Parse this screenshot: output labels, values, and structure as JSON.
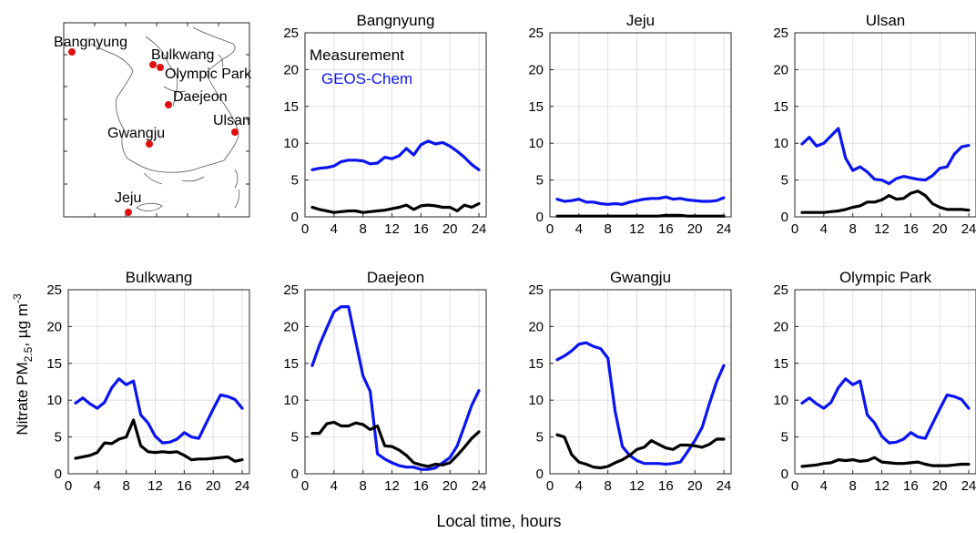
{
  "figure": {
    "ylabel_main": "Nitrate PM",
    "ylabel_sub": "2.5",
    "ylabel_unit": ", µg m",
    "ylabel_sup": "-3",
    "xlabel": "Local time, hours",
    "legend": {
      "measurement": "Measurement",
      "model": "GEOS-Chem"
    },
    "colors": {
      "measurement": "#000000",
      "model": "#0a14f0",
      "grid": "#e0e0e0",
      "axis": "#262626",
      "site": "#e01010"
    }
  },
  "map": {
    "sites": [
      {
        "name": "Bangnyung"
      },
      {
        "name": "Bulkwang"
      },
      {
        "name": "Olympic Park"
      },
      {
        "name": "Daejeon"
      },
      {
        "name": "Ulsan"
      },
      {
        "name": "Gwangju"
      },
      {
        "name": "Jeju"
      }
    ]
  },
  "chart_data": [
    {
      "type": "line",
      "title": "Bangnyung",
      "x": [
        1,
        2,
        3,
        4,
        5,
        6,
        7,
        8,
        9,
        10,
        11,
        12,
        13,
        14,
        15,
        16,
        17,
        18,
        19,
        20,
        21,
        22,
        23,
        24
      ],
      "xlim": [
        0,
        25
      ],
      "ylim": [
        0,
        25
      ],
      "xticks": [
        0,
        4,
        8,
        12,
        16,
        20,
        24
      ],
      "yticks": [
        0,
        5,
        10,
        15,
        20,
        25
      ],
      "series": [
        {
          "name": "GEOS-Chem",
          "values": [
            6.4,
            6.6,
            6.7,
            6.9,
            7.5,
            7.7,
            7.7,
            7.6,
            7.2,
            7.3,
            8.1,
            7.9,
            8.3,
            9.3,
            8.4,
            9.8,
            10.3,
            9.9,
            10.1,
            9.6,
            8.9,
            8.1,
            7.1,
            6.4
          ]
        },
        {
          "name": "Measurement",
          "values": [
            1.3,
            1.0,
            0.8,
            0.6,
            0.7,
            0.8,
            0.8,
            0.6,
            0.7,
            0.8,
            0.9,
            1.1,
            1.3,
            1.6,
            1.0,
            1.5,
            1.6,
            1.5,
            1.3,
            1.3,
            0.8,
            1.6,
            1.3,
            1.8
          ]
        }
      ]
    },
    {
      "type": "line",
      "title": "Jeju",
      "x": [
        1,
        2,
        3,
        4,
        5,
        6,
        7,
        8,
        9,
        10,
        11,
        12,
        13,
        14,
        15,
        16,
        17,
        18,
        19,
        20,
        21,
        22,
        23,
        24
      ],
      "xlim": [
        0,
        25
      ],
      "ylim": [
        0,
        25
      ],
      "xticks": [
        0,
        4,
        8,
        12,
        16,
        20,
        24
      ],
      "yticks": [
        0,
        5,
        10,
        15,
        20,
        25
      ],
      "series": [
        {
          "name": "GEOS-Chem",
          "values": [
            2.4,
            2.1,
            2.2,
            2.4,
            2.0,
            2.0,
            1.8,
            1.7,
            1.8,
            1.7,
            2.0,
            2.2,
            2.4,
            2.5,
            2.5,
            2.7,
            2.4,
            2.5,
            2.3,
            2.2,
            2.1,
            2.1,
            2.2,
            2.6
          ]
        },
        {
          "name": "Measurement",
          "values": [
            0.1,
            0.1,
            0.1,
            0.1,
            0.1,
            0.1,
            0.1,
            0.1,
            0.1,
            0.1,
            0.1,
            0.1,
            0.1,
            0.1,
            0.1,
            0.2,
            0.2,
            0.2,
            0.1,
            0.1,
            0.1,
            0.1,
            0.1,
            0.1
          ]
        }
      ]
    },
    {
      "type": "line",
      "title": "Ulsan",
      "x": [
        1,
        2,
        3,
        4,
        5,
        6,
        7,
        8,
        9,
        10,
        11,
        12,
        13,
        14,
        15,
        16,
        17,
        18,
        19,
        20,
        21,
        22,
        23,
        24
      ],
      "xlim": [
        0,
        25
      ],
      "ylim": [
        0,
        25
      ],
      "xticks": [
        0,
        4,
        8,
        12,
        16,
        20,
        24
      ],
      "yticks": [
        0,
        5,
        10,
        15,
        20,
        25
      ],
      "series": [
        {
          "name": "GEOS-Chem",
          "values": [
            9.9,
            10.8,
            9.6,
            10.0,
            11.0,
            12.0,
            8.0,
            6.3,
            6.8,
            6.1,
            5.1,
            5.0,
            4.5,
            5.2,
            5.5,
            5.3,
            5.1,
            5.0,
            5.6,
            6.6,
            6.8,
            8.5,
            9.5,
            9.7
          ]
        },
        {
          "name": "Measurement",
          "values": [
            0.6,
            0.6,
            0.6,
            0.6,
            0.7,
            0.8,
            1.0,
            1.3,
            1.5,
            2.0,
            2.0,
            2.3,
            2.9,
            2.4,
            2.5,
            3.2,
            3.5,
            2.9,
            1.8,
            1.3,
            1.0,
            1.0,
            1.0,
            0.9
          ]
        }
      ]
    },
    {
      "type": "line",
      "title": "Bulkwang",
      "x": [
        1,
        2,
        3,
        4,
        5,
        6,
        7,
        8,
        9,
        10,
        11,
        12,
        13,
        14,
        15,
        16,
        17,
        18,
        19,
        20,
        21,
        22,
        23,
        24
      ],
      "xlim": [
        0,
        25
      ],
      "ylim": [
        0,
        25
      ],
      "xticks": [
        0,
        4,
        8,
        12,
        16,
        20,
        24
      ],
      "yticks": [
        0,
        5,
        10,
        15,
        20,
        25
      ],
      "series": [
        {
          "name": "GEOS-Chem",
          "values": [
            9.6,
            10.3,
            9.5,
            8.9,
            9.7,
            11.7,
            12.9,
            12.1,
            12.6,
            8.0,
            6.9,
            5.1,
            4.2,
            4.3,
            4.7,
            5.6,
            5.0,
            4.8,
            6.8,
            8.8,
            10.7,
            10.5,
            10.1,
            8.9
          ]
        },
        {
          "name": "Measurement",
          "values": [
            2.1,
            2.3,
            2.5,
            2.9,
            4.2,
            4.1,
            4.7,
            5.0,
            7.3,
            3.8,
            3.0,
            2.9,
            3.0,
            2.9,
            3.0,
            2.5,
            1.9,
            2.0,
            2.0,
            2.1,
            2.2,
            2.3,
            1.7,
            1.9
          ]
        }
      ]
    },
    {
      "type": "line",
      "title": "Daejeon",
      "x": [
        1,
        2,
        3,
        4,
        5,
        6,
        7,
        8,
        9,
        10,
        11,
        12,
        13,
        14,
        15,
        16,
        17,
        18,
        19,
        20,
        21,
        22,
        23,
        24
      ],
      "xlim": [
        0,
        25
      ],
      "ylim": [
        0,
        25
      ],
      "xticks": [
        0,
        4,
        8,
        12,
        16,
        20,
        24
      ],
      "yticks": [
        0,
        5,
        10,
        15,
        20,
        25
      ],
      "series": [
        {
          "name": "GEOS-Chem",
          "values": [
            14.7,
            17.5,
            19.8,
            22.0,
            22.7,
            22.7,
            18.0,
            13.3,
            11.2,
            2.7,
            2.0,
            1.5,
            1.1,
            0.9,
            0.9,
            0.6,
            0.6,
            0.8,
            1.5,
            2.2,
            3.8,
            6.5,
            9.3,
            11.3
          ]
        },
        {
          "name": "Measurement",
          "values": [
            5.5,
            5.5,
            6.8,
            7.0,
            6.5,
            6.5,
            6.9,
            6.7,
            6.0,
            6.5,
            3.8,
            3.7,
            3.2,
            2.5,
            1.5,
            1.2,
            1.0,
            1.3,
            1.2,
            1.5,
            2.5,
            3.6,
            4.8,
            5.7
          ]
        }
      ]
    },
    {
      "type": "line",
      "title": "Gwangju",
      "x": [
        1,
        2,
        3,
        4,
        5,
        6,
        7,
        8,
        9,
        10,
        11,
        12,
        13,
        14,
        15,
        16,
        17,
        18,
        19,
        20,
        21,
        22,
        23,
        24
      ],
      "xlim": [
        0,
        25
      ],
      "ylim": [
        0,
        25
      ],
      "xticks": [
        0,
        4,
        8,
        12,
        16,
        20,
        24
      ],
      "yticks": [
        0,
        5,
        10,
        15,
        20,
        25
      ],
      "series": [
        {
          "name": "GEOS-Chem",
          "values": [
            15.5,
            16.0,
            16.7,
            17.6,
            17.8,
            17.3,
            17.0,
            15.7,
            8.5,
            3.7,
            2.5,
            1.8,
            1.4,
            1.4,
            1.4,
            1.3,
            1.4,
            1.6,
            3.0,
            4.5,
            6.3,
            9.5,
            12.5,
            14.7
          ]
        },
        {
          "name": "Measurement",
          "values": [
            5.3,
            5.0,
            2.6,
            1.6,
            1.3,
            0.9,
            0.8,
            1.0,
            1.5,
            1.9,
            2.5,
            3.3,
            3.6,
            4.5,
            4.0,
            3.5,
            3.3,
            3.9,
            3.9,
            3.8,
            3.6,
            4.0,
            4.7,
            4.7
          ]
        }
      ]
    },
    {
      "type": "line",
      "title": "Olympic Park",
      "x": [
        1,
        2,
        3,
        4,
        5,
        6,
        7,
        8,
        9,
        10,
        11,
        12,
        13,
        14,
        15,
        16,
        17,
        18,
        19,
        20,
        21,
        22,
        23,
        24
      ],
      "xlim": [
        0,
        25
      ],
      "ylim": [
        0,
        25
      ],
      "xticks": [
        0,
        4,
        8,
        12,
        16,
        20,
        24
      ],
      "yticks": [
        0,
        5,
        10,
        15,
        20,
        25
      ],
      "series": [
        {
          "name": "GEOS-Chem",
          "values": [
            9.6,
            10.3,
            9.5,
            8.9,
            9.7,
            11.7,
            12.9,
            12.1,
            12.6,
            8.0,
            6.9,
            5.1,
            4.2,
            4.3,
            4.7,
            5.6,
            5.0,
            4.8,
            6.8,
            8.8,
            10.7,
            10.5,
            10.1,
            8.9
          ]
        },
        {
          "name": "Measurement",
          "values": [
            1.0,
            1.1,
            1.2,
            1.4,
            1.5,
            1.9,
            1.8,
            1.9,
            1.7,
            1.8,
            2.2,
            1.6,
            1.5,
            1.4,
            1.4,
            1.5,
            1.6,
            1.3,
            1.1,
            1.1,
            1.1,
            1.2,
            1.3,
            1.3
          ]
        }
      ]
    }
  ]
}
